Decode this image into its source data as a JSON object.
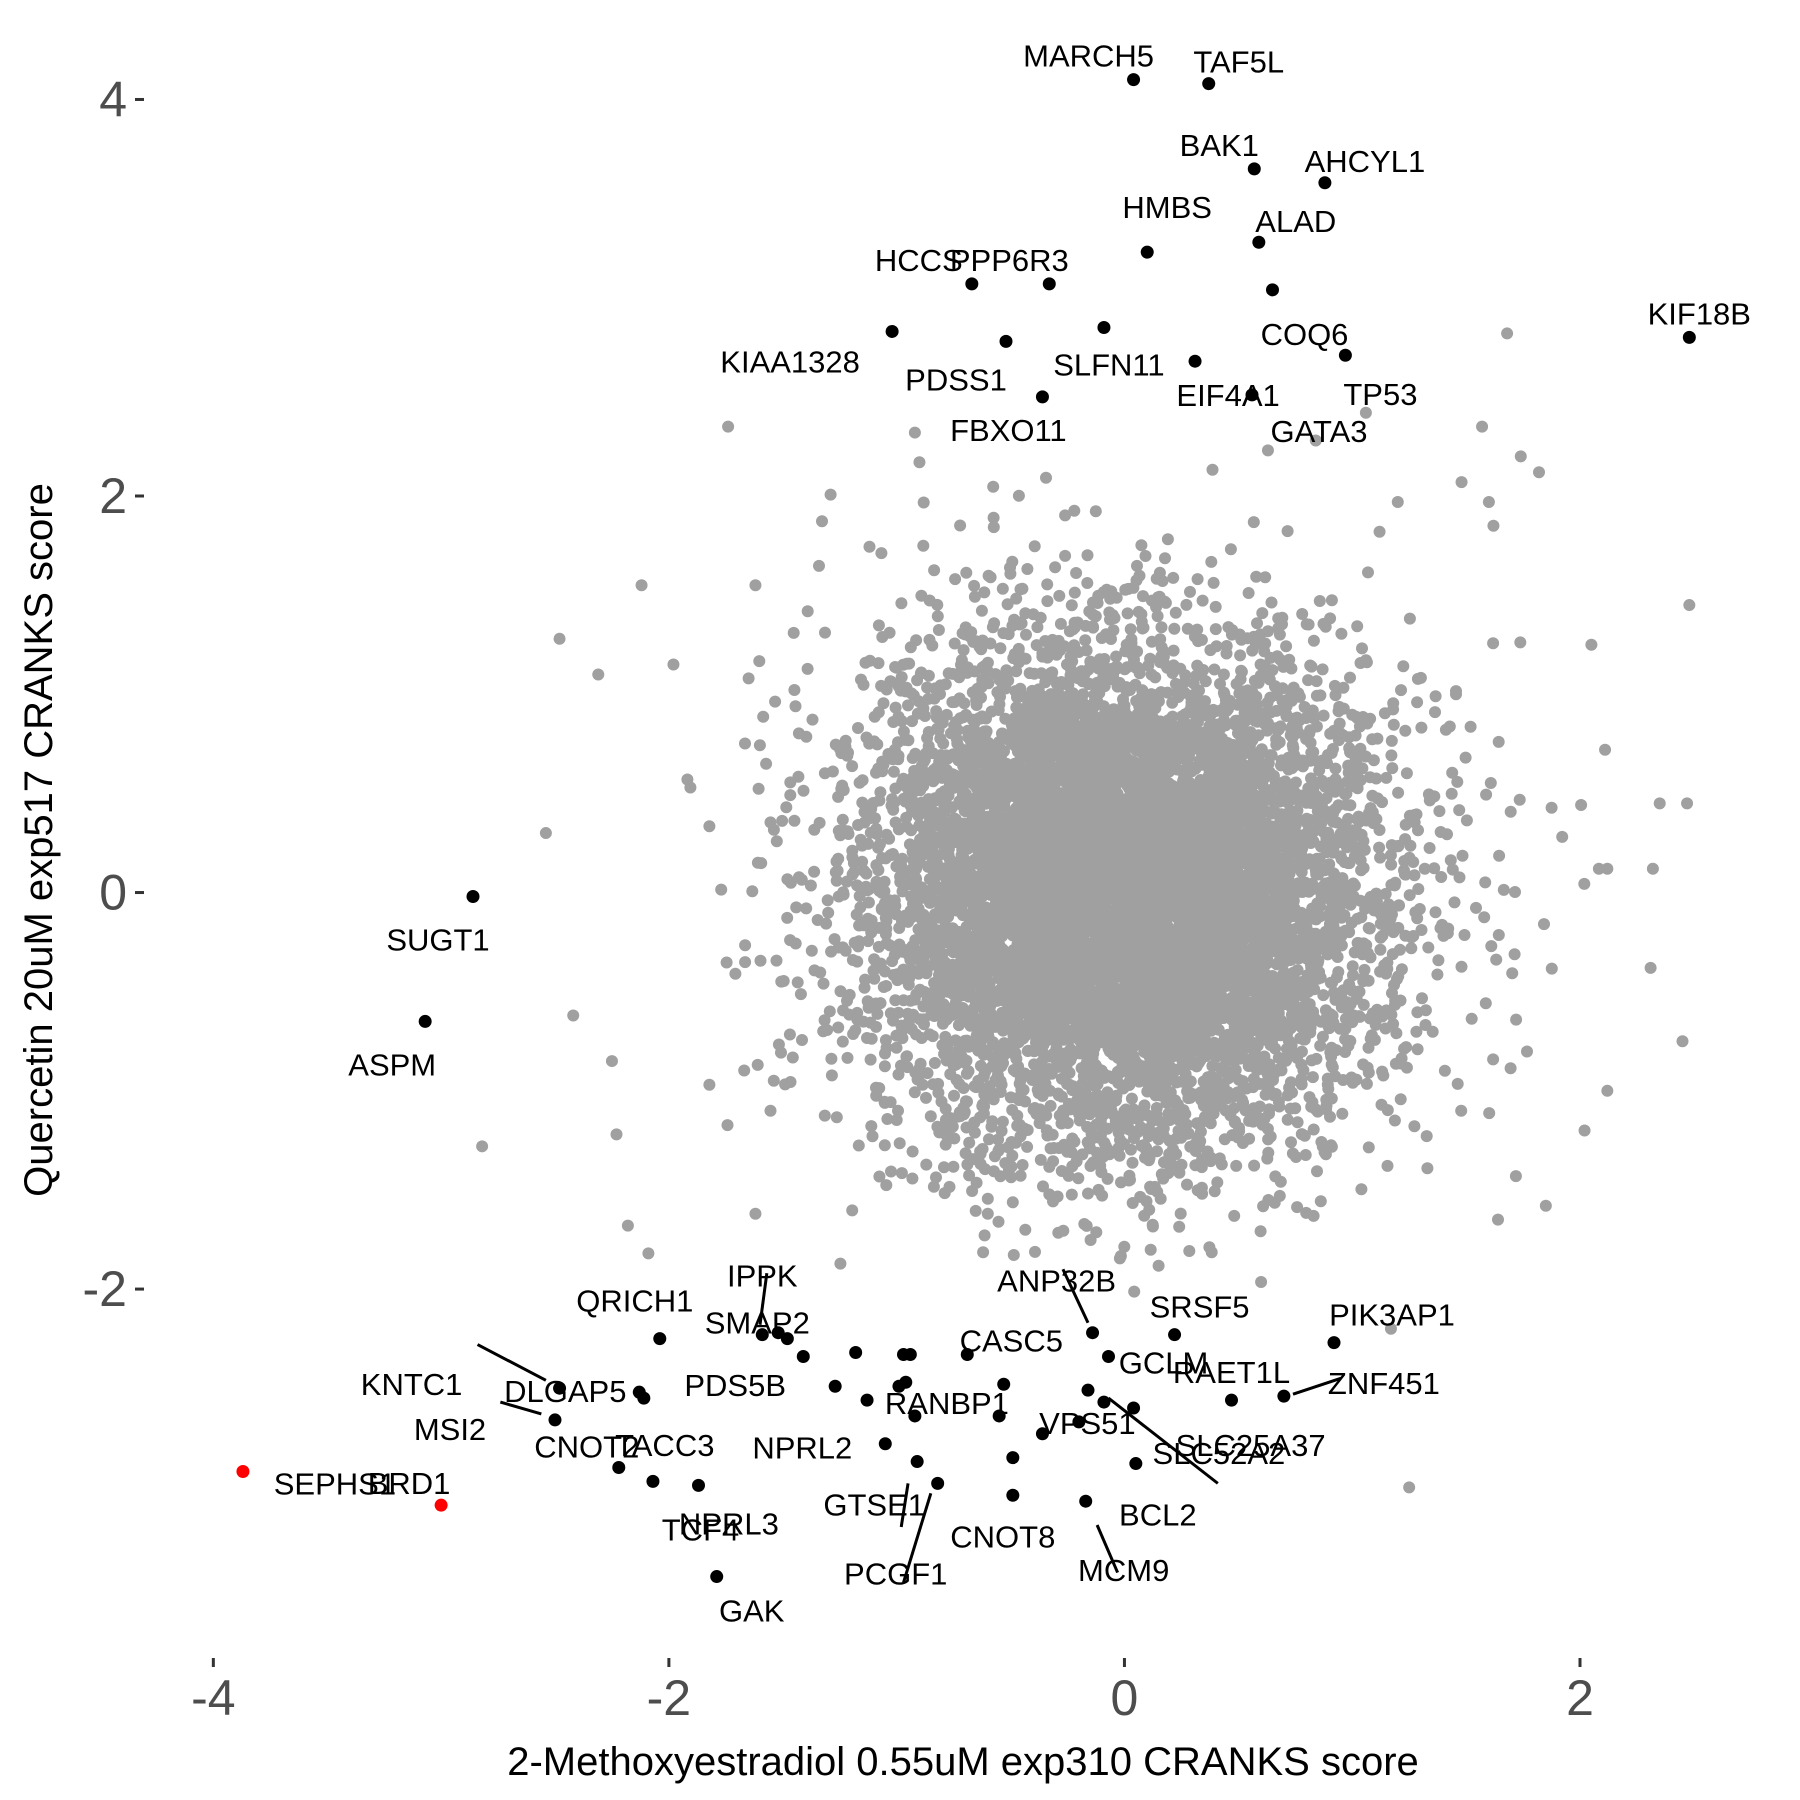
{
  "chart_data": {
    "type": "scatter",
    "xlabel": "2-Methoxyestradiol 0.55uM exp310 CRANKS score",
    "ylabel": "Quercetin 20uM exp517 CRANKS score",
    "xlim": [
      -4.3,
      2.9
    ],
    "ylim": [
      -3.77,
      4.3
    ],
    "grid": false,
    "x_ticks": [
      {
        "value": -4,
        "label": "-4"
      },
      {
        "value": -2,
        "label": "-2"
      },
      {
        "value": 0,
        "label": "0"
      },
      {
        "value": 2,
        "label": "2"
      }
    ],
    "y_ticks": [
      {
        "value": -2,
        "label": "-2"
      },
      {
        "value": 0,
        "label": "0"
      },
      {
        "value": 2,
        "label": "2"
      },
      {
        "value": 4,
        "label": "4"
      }
    ],
    "colors": {
      "background_points": "#a0a0a0",
      "highlight": "#000000",
      "special": "#ff0000"
    },
    "background_cloud": {
      "center": [
        0,
        0
      ],
      "sd_x": 0.55,
      "sd_y": 0.62,
      "count": 9000
    },
    "outlier_points": [
      {
        "x": -1.74,
        "y": 2.35
      },
      {
        "x": -0.92,
        "y": 2.32
      },
      {
        "x": -0.9,
        "y": 2.17
      },
      {
        "x": 1.68,
        "y": 2.82
      },
      {
        "x": 1.57,
        "y": 2.35
      },
      {
        "x": 1.06,
        "y": 2.42
      },
      {
        "x": 0.84,
        "y": 2.28
      },
      {
        "x": 0.63,
        "y": 2.23
      },
      {
        "x": 1.74,
        "y": 2.2
      },
      {
        "x": 1.82,
        "y": 2.12
      },
      {
        "x": 1.48,
        "y": 2.07
      },
      {
        "x": 1.6,
        "y": 1.97
      },
      {
        "x": 1.62,
        "y": 1.85
      },
      {
        "x": 1.2,
        "y": 1.97
      },
      {
        "x": 1.12,
        "y": 1.82
      },
      {
        "x": -2.12,
        "y": 1.55
      },
      {
        "x": -1.62,
        "y": 1.55
      },
      {
        "x": -2.48,
        "y": 1.28
      },
      {
        "x": -2.31,
        "y": 1.1
      },
      {
        "x": -1.98,
        "y": 1.15
      },
      {
        "x": -1.65,
        "y": 1.08
      },
      {
        "x": -2.54,
        "y": 0.3
      },
      {
        "x": -2.42,
        "y": -0.62
      },
      {
        "x": -2.82,
        "y": -1.28
      },
      {
        "x": -2.25,
        "y": -0.85
      },
      {
        "x": -2.23,
        "y": -1.22
      },
      {
        "x": -2.18,
        "y": -1.68
      },
      {
        "x": -2.09,
        "y": -1.82
      },
      {
        "x": -1.62,
        "y": -1.62
      },
      {
        "x": 2.48,
        "y": 1.45
      },
      {
        "x": 2.47,
        "y": 0.45
      },
      {
        "x": 2.35,
        "y": 0.45
      },
      {
        "x": 2.32,
        "y": 0.12
      },
      {
        "x": 2.31,
        "y": -0.38
      },
      {
        "x": 2.45,
        "y": -0.75
      },
      {
        "x": 2.05,
        "y": 1.25
      },
      {
        "x": 2.11,
        "y": 0.72
      },
      {
        "x": 2.12,
        "y": 0.12
      },
      {
        "x": 2.12,
        "y": -1.0
      },
      {
        "x": 2.02,
        "y": -1.2
      },
      {
        "x": 1.25,
        "y": -3.0
      },
      {
        "x": 1.17,
        "y": -2.2
      },
      {
        "x": 1.85,
        "y": -1.58
      },
      {
        "x": 1.64,
        "y": -1.65
      }
    ],
    "labeled_points": [
      {
        "label": "MARCH5",
        "x": 0.04,
        "y": 4.1,
        "color": "black"
      },
      {
        "label": "TAF5L",
        "x": 0.37,
        "y": 4.08,
        "color": "black"
      },
      {
        "label": "BAK1",
        "x": 0.57,
        "y": 3.65,
        "color": "black"
      },
      {
        "label": "AHCYL1",
        "x": 0.88,
        "y": 3.58,
        "color": "black"
      },
      {
        "label": "HMBS",
        "x": 0.1,
        "y": 3.23,
        "color": "black"
      },
      {
        "label": "ALAD",
        "x": 0.59,
        "y": 3.28,
        "color": "black"
      },
      {
        "label": "PPP6R3",
        "x": -0.33,
        "y": 3.07,
        "color": "black"
      },
      {
        "label": "HCCS",
        "x": -0.67,
        "y": 3.07,
        "color": "black"
      },
      {
        "label": "COQ6",
        "x": 0.65,
        "y": 3.04,
        "color": "black"
      },
      {
        "label": "KIF18B",
        "x": 2.48,
        "y": 2.8,
        "color": "black"
      },
      {
        "label": "KIAA1328",
        "x": -1.02,
        "y": 2.83,
        "color": "black"
      },
      {
        "label": "PDSS1",
        "x": -0.52,
        "y": 2.78,
        "color": "black"
      },
      {
        "label": "SLFN11",
        "x": -0.09,
        "y": 2.85,
        "color": "black"
      },
      {
        "label": "TP53",
        "x": 0.97,
        "y": 2.71,
        "color": "black"
      },
      {
        "label": "EIF4A1",
        "x": 0.31,
        "y": 2.68,
        "color": "black"
      },
      {
        "label": "FBXO11",
        "x": -0.36,
        "y": 2.5,
        "color": "black"
      },
      {
        "label": "GATA3",
        "x": 0.56,
        "y": 2.51,
        "color": "black"
      },
      {
        "label": "SUGT1",
        "x": -2.86,
        "y": -0.02,
        "color": "black"
      },
      {
        "label": "ASPM",
        "x": -3.07,
        "y": -0.65,
        "color": "black"
      },
      {
        "label": "IPPK",
        "x": -1.59,
        "y": -2.23,
        "color": "black"
      },
      {
        "label": "QRICH1",
        "x": -2.04,
        "y": -2.25,
        "color": "black"
      },
      {
        "label": "ANP32B",
        "x": -0.14,
        "y": -2.22,
        "color": "black"
      },
      {
        "label": "SRSF5",
        "x": 0.22,
        "y": -2.23,
        "color": "black"
      },
      {
        "label": "PIK3AP1",
        "x": 0.92,
        "y": -2.27,
        "color": "black"
      },
      {
        "label": "SMAP2",
        "x": -1.48,
        "y": -2.25,
        "color": "black"
      },
      {
        "label": "CASC5",
        "x": -0.69,
        "y": -2.33,
        "color": "black"
      },
      {
        "label": "KNTC1",
        "x": -2.48,
        "y": -2.5,
        "color": "black"
      },
      {
        "label": "DLGAP5",
        "x": -2.13,
        "y": -2.52,
        "color": "black"
      },
      {
        "label": "PDS5B",
        "x": -1.27,
        "y": -2.49,
        "color": "black"
      },
      {
        "label": "GCLM",
        "x": -0.07,
        "y": -2.34,
        "color": "black"
      },
      {
        "label": "RAET1L",
        "x": 0.47,
        "y": -2.56,
        "color": "black"
      },
      {
        "label": "ZNF451",
        "x": 0.7,
        "y": -2.54,
        "color": "black"
      },
      {
        "label": "MSI2",
        "x": -2.5,
        "y": -2.66,
        "color": "black"
      },
      {
        "label": "SLC25A37",
        "x": 0.04,
        "y": -2.6,
        "color": "black"
      },
      {
        "label": "TACC3",
        "x": -2.11,
        "y": -2.55,
        "color": "black"
      },
      {
        "label": "CNOT2",
        "x": -2.22,
        "y": -2.9,
        "color": "black"
      },
      {
        "label": "RANBP1",
        "x": -0.92,
        "y": -2.64,
        "color": "black"
      },
      {
        "label": "VPS51",
        "x": -0.36,
        "y": -2.73,
        "color": "black"
      },
      {
        "label": "SLC52A2",
        "x": -0.09,
        "y": -2.57,
        "color": "black"
      },
      {
        "label": "SEPHS1",
        "x": -3.87,
        "y": -2.92,
        "color": "red"
      },
      {
        "label": "NPRL3",
        "x": -2.07,
        "y": -2.97,
        "color": "black"
      },
      {
        "label": "NPRL2",
        "x": -1.05,
        "y": -2.78,
        "color": "black"
      },
      {
        "label": "BRD1",
        "x": -3.0,
        "y": -3.09,
        "color": "red"
      },
      {
        "label": "TCF4",
        "x": -1.87,
        "y": -2.99,
        "color": "black"
      },
      {
        "label": "GTSE1",
        "x": -0.91,
        "y": -2.87,
        "color": "black"
      },
      {
        "label": "CNOT8",
        "x": -0.49,
        "y": -3.04,
        "color": "black"
      },
      {
        "label": "PCGF1",
        "x": -0.82,
        "y": -2.98,
        "color": "black"
      },
      {
        "label": "BCL2",
        "x": 0.05,
        "y": -2.88,
        "color": "black"
      },
      {
        "label": "MCM9",
        "x": -0.17,
        "y": -3.07,
        "color": "black"
      },
      {
        "label": "GAK",
        "x": -1.79,
        "y": -3.45,
        "color": "black"
      }
    ],
    "unlabeled_highlights": [
      {
        "x": -0.53,
        "y": -2.48
      },
      {
        "x": -0.55,
        "y": -2.64
      },
      {
        "x": -0.49,
        "y": -2.85
      },
      {
        "x": -1.52,
        "y": -2.22
      },
      {
        "x": -1.41,
        "y": -2.34
      },
      {
        "x": -1.18,
        "y": -2.32
      },
      {
        "x": -0.97,
        "y": -2.33
      },
      {
        "x": -0.99,
        "y": -2.49
      },
      {
        "x": -0.94,
        "y": -2.33
      },
      {
        "x": -0.96,
        "y": -2.47
      },
      {
        "x": -1.13,
        "y": -2.56
      },
      {
        "x": -0.2,
        "y": -2.67
      },
      {
        "x": -0.16,
        "y": -2.51
      }
    ],
    "leader_lines": [
      {
        "from": [
          -1.57,
          -1.92
        ],
        "to": [
          -1.6,
          -2.18
        ]
      },
      {
        "from": [
          -2.84,
          -2.28
        ],
        "to": [
          -2.54,
          -2.46
        ]
      },
      {
        "from": [
          -2.74,
          -2.57
        ],
        "to": [
          -2.56,
          -2.63
        ]
      },
      {
        "from": [
          -0.27,
          -1.9
        ],
        "to": [
          -0.16,
          -2.17
        ]
      },
      {
        "from": [
          0.95,
          -2.45
        ],
        "to": [
          0.74,
          -2.53
        ]
      },
      {
        "from": [
          -0.07,
          -2.55
        ],
        "to": [
          0.41,
          -2.98
        ]
      },
      {
        "from": [
          -0.95,
          -2.98
        ],
        "to": [
          -0.98,
          -3.2
        ]
      },
      {
        "from": [
          -0.85,
          -3.03
        ],
        "to": [
          -0.97,
          -3.48
        ]
      },
      {
        "from": [
          -0.12,
          -3.19
        ],
        "to": [
          -0.03,
          -3.43
        ]
      }
    ]
  }
}
